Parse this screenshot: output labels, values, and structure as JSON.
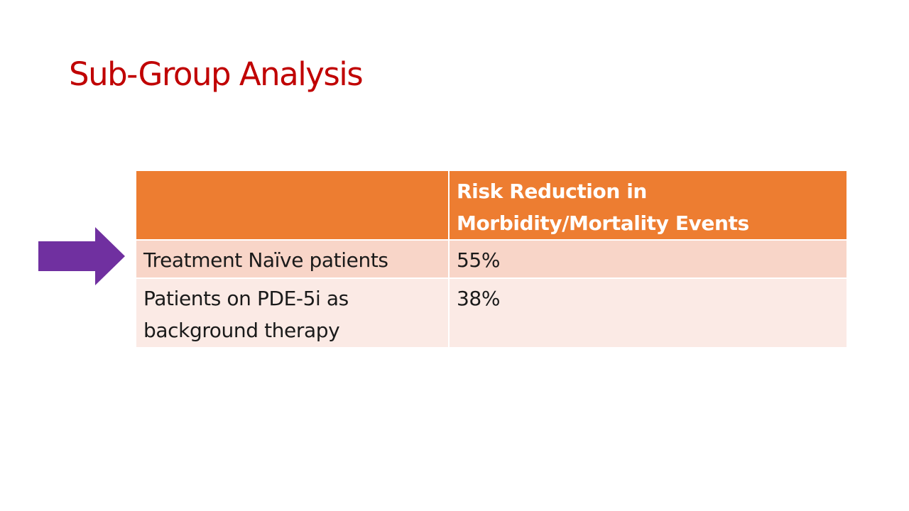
{
  "slide": {
    "title": "Sub-Group Analysis"
  },
  "colors": {
    "title": "#c00000",
    "header_bg": "#ed7d31",
    "row1_bg": "#f8d5c8",
    "row2_bg": "#fbeae5",
    "arrow": "#7030a0"
  },
  "pointer": {
    "icon": "right-arrow-icon",
    "target_row": 1
  },
  "table": {
    "columns": [
      "",
      "Risk Reduction in Morbidity/Mortality Events"
    ],
    "header_line_1": "Risk Reduction in",
    "header_line_2": "Morbidity/Mortality Events",
    "rows": [
      {
        "label": "Treatment Naïve patients",
        "value": "55%"
      },
      {
        "label": "Patients on PDE-5i as background therapy",
        "label_line_1": "Patients on PDE-5i as",
        "label_line_2": "background therapy",
        "value": "38%"
      }
    ]
  }
}
